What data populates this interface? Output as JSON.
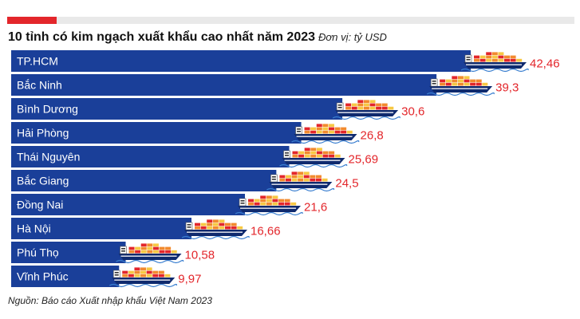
{
  "chart_data": {
    "type": "bar",
    "orientation": "horizontal",
    "title": "10 tỉnh có kim ngạch xuất khẩu cao nhất năm 2023",
    "unit": "Đơn vị: tỷ USD",
    "categories": [
      "TP.HCM",
      "Bắc Ninh",
      "Bình Dương",
      "Hải Phòng",
      "Thái Nguyên",
      "Bắc Giang",
      "Đồng Nai",
      "Hà Nội",
      "Phú Thọ",
      "Vĩnh Phúc"
    ],
    "values": [
      42.46,
      39.3,
      30.6,
      26.8,
      25.69,
      24.5,
      21.6,
      16.66,
      10.58,
      9.97
    ],
    "value_labels": [
      "42,46",
      "39,3",
      "30,6",
      "26,8",
      "25,69",
      "24,5",
      "21,6",
      "16,66",
      "10,58",
      "9,97"
    ],
    "grid": false,
    "legend": "none",
    "colors": {
      "bar": "#1a3f99",
      "value_label": "#e3262b",
      "accent": "#e3262b",
      "ship_hull": "#0f2a6e",
      "container_orange": "#f28a2e",
      "container_red": "#e3262b",
      "container_yellow": "#f7c843",
      "water": "#3a7fd0"
    }
  },
  "header": {
    "title": "10 tỉnh có kim ngạch xuất khẩu cao nhất năm 2023",
    "unit": "Đơn vị: tỷ USD"
  },
  "footer": {
    "source": "Nguồn: Báo cáo Xuất nhập khẩu Việt Nam 2023"
  },
  "decorations": {
    "bar_icon": "cargo-ship-icon"
  }
}
